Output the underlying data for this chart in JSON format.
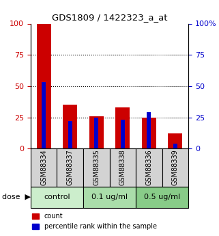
{
  "title": "GDS1809 / 1422323_a_at",
  "samples": [
    "GSM88334",
    "GSM88337",
    "GSM88335",
    "GSM88338",
    "GSM88336",
    "GSM88339"
  ],
  "red_values": [
    100,
    35,
    26,
    33,
    25,
    12
  ],
  "blue_values": [
    53,
    22,
    25,
    23,
    29,
    4
  ],
  "groups": [
    {
      "label": "control",
      "indices": [
        0,
        1
      ]
    },
    {
      "label": "0.1 ug/ml",
      "indices": [
        2,
        3
      ]
    },
    {
      "label": "0.5 ug/ml",
      "indices": [
        4,
        5
      ]
    }
  ],
  "group_bg_colors": [
    "#cceecc",
    "#aaddaa",
    "#88cc88"
  ],
  "ylim": [
    0,
    100
  ],
  "yticks": [
    0,
    25,
    50,
    75,
    100
  ],
  "red_color": "#cc0000",
  "blue_color": "#0000cc",
  "sample_box_color": "#d3d3d3",
  "legend_red": "count",
  "legend_blue": "percentile rank within the sample"
}
